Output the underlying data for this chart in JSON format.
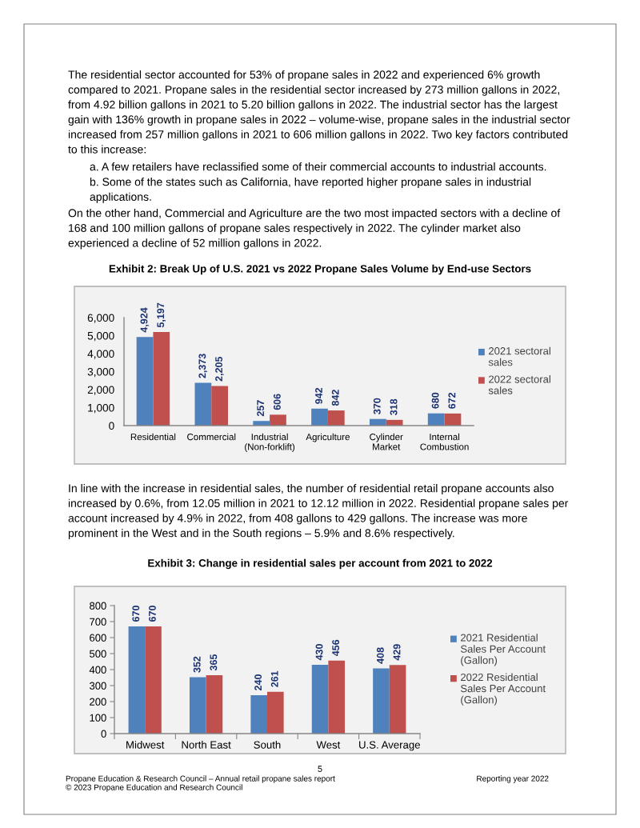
{
  "chart_data": [
    {
      "type": "bar",
      "title": "Exhibit 2: Break Up of U.S. 2021 vs 2022 Propane Sales Volume by End-use Sectors",
      "categories": [
        "Residential",
        "Commercial",
        "Industrial (Non-forklift)",
        "Agriculture",
        "Cylinder Market",
        "Internal Combustion"
      ],
      "series": [
        {
          "name": "2021 sectoral sales",
          "color": "#4f81bd",
          "values": [
            4924,
            2373,
            257,
            942,
            370,
            680
          ],
          "value_labels": [
            "4,924",
            "2,373",
            "257",
            "942",
            "370",
            "680"
          ]
        },
        {
          "name": "2022 sectoral sales",
          "color": "#c0504d",
          "values": [
            5197,
            2205,
            606,
            842,
            318,
            672
          ],
          "value_labels": [
            "5,197",
            "2,205",
            "606",
            "842",
            "318",
            "672"
          ]
        }
      ],
      "ylim": [
        0,
        6000
      ],
      "yticks": [
        0,
        {
          "value": 1000,
          "label": "1,000"
        },
        {
          "value": 2000,
          "label": "2,000"
        },
        {
          "value": 3000,
          "label": "3,000"
        },
        {
          "value": 4000,
          "label": "4,000"
        },
        {
          "value": 5000,
          "label": "5,000"
        },
        {
          "value": 6000,
          "label": "6,000"
        }
      ],
      "legend": "right",
      "annotations": [
        "The residential sector accounted for 53% of propane sales in 2022 and experienced 6% growth compared to 2021. Propane sales in the residential sector increased by 273 million gallons in 2022, from 4.92 billion gallons in 2021 to 5.20 billion gallons in 2022. The industrial sector has the largest gain with 136% growth in propane sales in 2022 – volume-wise, propane sales in the industrial sector increased from 257 million gallons in 2021 to 606 million gallons in 2022. Two key factors contributed to this increase:",
        "a. A few retailers have reclassified some of their commercial accounts to industrial accounts.",
        "b. Some of the states such as California, have reported higher propane sales in industrial applications.",
        "On the other hand, Commercial and Agriculture are the two most impacted sectors with a decline of 168 and 100 million gallons of propane sales respectively in 2022. The cylinder market also experienced a decline of 52 million gallons in 2022."
      ]
    },
    {
      "type": "bar",
      "title": "Exhibit 3: Change in residential sales per account from 2021 to 2022",
      "categories": [
        "Midwest",
        "North East",
        "South",
        "West",
        "U.S. Average"
      ],
      "series": [
        {
          "name": "2021 Residential Sales Per Account (Gallon)",
          "color": "#4f81bd",
          "values": [
            670,
            352,
            240,
            430,
            408
          ]
        },
        {
          "name": "2022 Residential Sales Per Account (Gallon)",
          "color": "#c0504d",
          "values": [
            670,
            365,
            261,
            456,
            429
          ]
        }
      ],
      "ylim": [
        0,
        800
      ],
      "yticks": [
        0,
        100,
        200,
        300,
        400,
        500,
        600,
        700,
        800
      ],
      "data_labels": true,
      "legend": "right",
      "annotations": [
        "In line with the increase in residential sales, the number of residential retail propane accounts also increased by 0.6%, from 12.05 million in 2021 to 12.12 million in 2022. Residential propane sales per account increased by 4.9% in 2022, from 408 gallons to 429 gallons. The increase was more prominent in the West and in the South regions – 5.9% and 8.6% respectively.",
        "5",
        "Propane Education & Research Council – Annual retail propane sales report",
        "Reporting year 2022",
        "© 2023 Propane Education and Research Council"
      ]
    }
  ]
}
